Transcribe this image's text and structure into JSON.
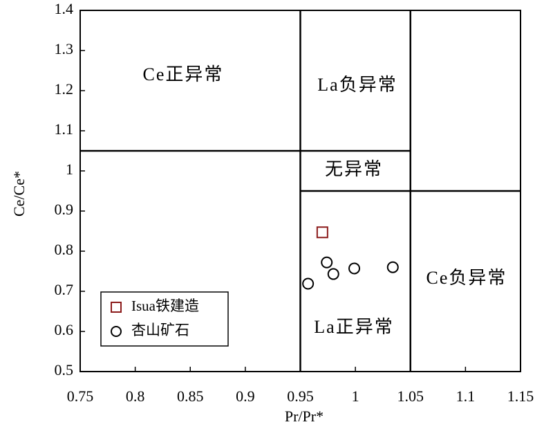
{
  "chart_data": {
    "type": "scatter",
    "x_label": "Pr/Pr*",
    "y_label": "Ce/Ce*",
    "xlim": [
      0.75,
      1.15
    ],
    "xticks": [
      0.75,
      0.8,
      0.85,
      0.9,
      0.95,
      1,
      1.05,
      1.1,
      1.15
    ],
    "ylim": [
      0.5,
      1.4
    ],
    "yticks": [
      0.5,
      0.6,
      0.7,
      0.8,
      0.9,
      1,
      1.1,
      1.2,
      1.3,
      1.4
    ],
    "legend": "lower left",
    "series": [
      {
        "name": "Isua铁建造",
        "color": "#8b1a1a",
        "marker": "square",
        "x": [
          0.97
        ],
        "values": [
          0.847
        ]
      },
      {
        "name": "杏山矿石",
        "color": "#000000",
        "marker": "circle",
        "x": [
          0.957,
          0.974,
          0.98,
          0.999,
          1.034
        ],
        "values": [
          0.719,
          0.772,
          0.743,
          0.757,
          0.76
        ]
      }
    ],
    "boundaries": [
      {
        "x": [
          0.75,
          1.05
        ],
        "y": [
          1.05,
          1.05
        ]
      },
      {
        "x": [
          0.95,
          0.95
        ],
        "y": [
          0.5,
          1.4
        ]
      },
      {
        "x": [
          1.05,
          1.05
        ],
        "y": [
          0.5,
          1.4
        ]
      },
      {
        "x": [
          0.95,
          1.15
        ],
        "y": [
          0.95,
          0.95
        ]
      }
    ],
    "region_labels": [
      "Ce正异常",
      "La负异常",
      "无异常",
      "Ce负异常",
      "La正异常"
    ]
  }
}
